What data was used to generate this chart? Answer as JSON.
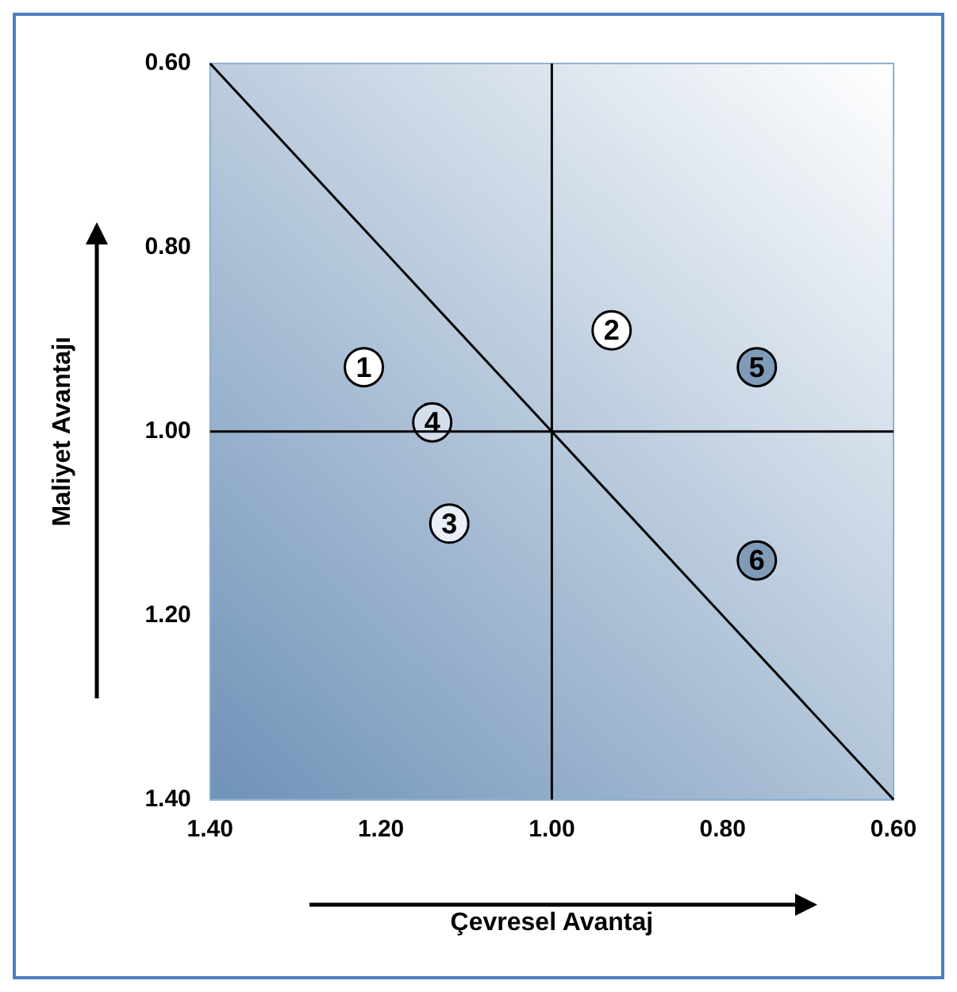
{
  "chart_data": {
    "type": "scatter",
    "xlabel": "Çevresel Avantaj",
    "ylabel": "Maliyet Avantajı",
    "xlim": [
      1.4,
      0.6
    ],
    "ylim": [
      1.4,
      0.6
    ],
    "xticks": [
      {
        "value": 1.4,
        "label": "1.40"
      },
      {
        "value": 1.2,
        "label": "1.20"
      },
      {
        "value": 1.0,
        "label": "1.00"
      },
      {
        "value": 0.8,
        "label": "0.80"
      },
      {
        "value": 0.6,
        "label": "0.60"
      }
    ],
    "yticks": [
      {
        "value": 1.4,
        "label": "1.40"
      },
      {
        "value": 1.2,
        "label": "1.20"
      },
      {
        "value": 1.0,
        "label": "1.00"
      },
      {
        "value": 0.8,
        "label": "0.80"
      },
      {
        "value": 0.6,
        "label": "0.60"
      }
    ],
    "legend": false,
    "marker": "circle",
    "series": [
      {
        "type": "line",
        "color": "#000000",
        "line_style": "solid",
        "marker": "none",
        "x": [
          1.0,
          1.0
        ],
        "values": [
          1.4,
          0.6
        ]
      },
      {
        "type": "line",
        "color": "#000000",
        "line_style": "solid",
        "marker": "none",
        "x": [
          1.4,
          0.6
        ],
        "values": [
          1.0,
          1.0
        ]
      },
      {
        "type": "line",
        "color": "#000000",
        "line_style": "solid",
        "marker": "none",
        "x": [
          1.4,
          0.6
        ],
        "values": [
          0.6,
          1.4
        ]
      },
      {
        "name": "1",
        "color": "#ffffff",
        "x": [
          1.22
        ],
        "values": [
          0.93
        ]
      },
      {
        "name": "2",
        "color": "#ffffff",
        "x": [
          0.93
        ],
        "values": [
          0.89
        ]
      },
      {
        "name": "3",
        "color": "#e8eff6",
        "x": [
          1.12
        ],
        "values": [
          1.1
        ]
      },
      {
        "name": "4",
        "color": "#d3e0ec",
        "x": [
          1.14
        ],
        "values": [
          0.99
        ]
      },
      {
        "name": "5",
        "color": "#7f9bb8",
        "x": [
          0.76
        ],
        "values": [
          0.93
        ]
      },
      {
        "name": "6",
        "color": "#7f9bb8",
        "x": [
          0.76
        ],
        "values": [
          1.14
        ]
      }
    ]
  }
}
